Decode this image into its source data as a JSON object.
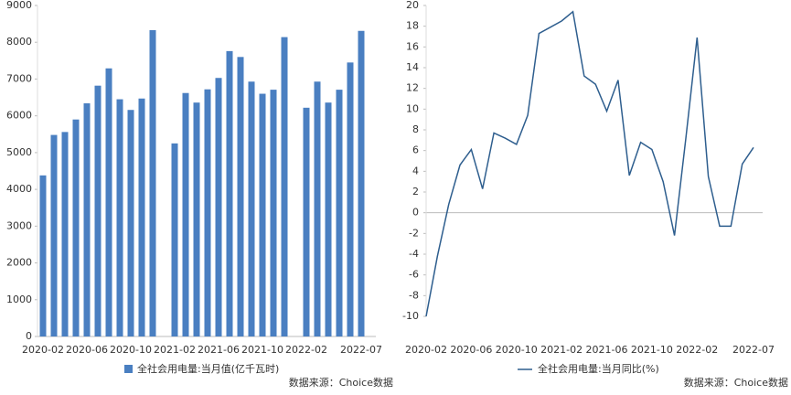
{
  "chart_data": [
    {
      "type": "bar",
      "categories": [
        "2020-02",
        null,
        null,
        null,
        "2020-06",
        null,
        null,
        null,
        "2020-10",
        null,
        null,
        null,
        "2021-02",
        null,
        null,
        null,
        "2021-06",
        null,
        null,
        null,
        "2021-10",
        null,
        null,
        null,
        "2022-02",
        null,
        null,
        null,
        null,
        "2022-07"
      ],
      "series": [
        {
          "name": "全社会用电量:当月值(亿千瓦时)",
          "color": "#4a7fc1",
          "values": [
            4380,
            5480,
            5560,
            5900,
            6340,
            6820,
            7290,
            6450,
            6160,
            6470,
            8330,
            null,
            5250,
            6620,
            6360,
            6720,
            7030,
            7760,
            7600,
            6930,
            6600,
            6710,
            8140,
            null,
            6220,
            6930,
            6360,
            6710,
            7450,
            8310
          ]
        }
      ],
      "ylim": [
        0,
        9000
      ],
      "yticks": [
        0,
        1000,
        2000,
        3000,
        4000,
        5000,
        6000,
        7000,
        8000,
        9000
      ],
      "source": "数据来源：Choice数据"
    },
    {
      "type": "line",
      "categories": [
        "2020-02",
        null,
        null,
        null,
        "2020-06",
        null,
        null,
        null,
        "2020-10",
        null,
        null,
        null,
        "2021-02",
        null,
        null,
        null,
        "2021-06",
        null,
        null,
        null,
        "2021-10",
        null,
        null,
        null,
        "2022-02",
        null,
        null,
        null,
        null,
        "2022-07"
      ],
      "series": [
        {
          "name": "全社会用电量:当月同比(%)",
          "color": "#2e5e8e",
          "values": [
            -10,
            -4.2,
            0.8,
            4.6,
            6.1,
            2.3,
            7.7,
            7.2,
            6.6,
            9.4,
            17.3,
            17.9,
            18.5,
            19.4,
            13.2,
            12.4,
            9.8,
            12.8,
            3.6,
            6.8,
            6.1,
            3.0,
            -2.2,
            7.1,
            16.9,
            3.5,
            -1.3,
            -1.3,
            4.7,
            6.3
          ]
        }
      ],
      "ylim": [
        -10,
        20
      ],
      "yticks": [
        -10,
        -8,
        -6,
        -4,
        -2,
        0,
        2,
        4,
        6,
        8,
        10,
        12,
        14,
        16,
        18,
        20
      ],
      "source": "数据来源：Choice数据"
    }
  ]
}
